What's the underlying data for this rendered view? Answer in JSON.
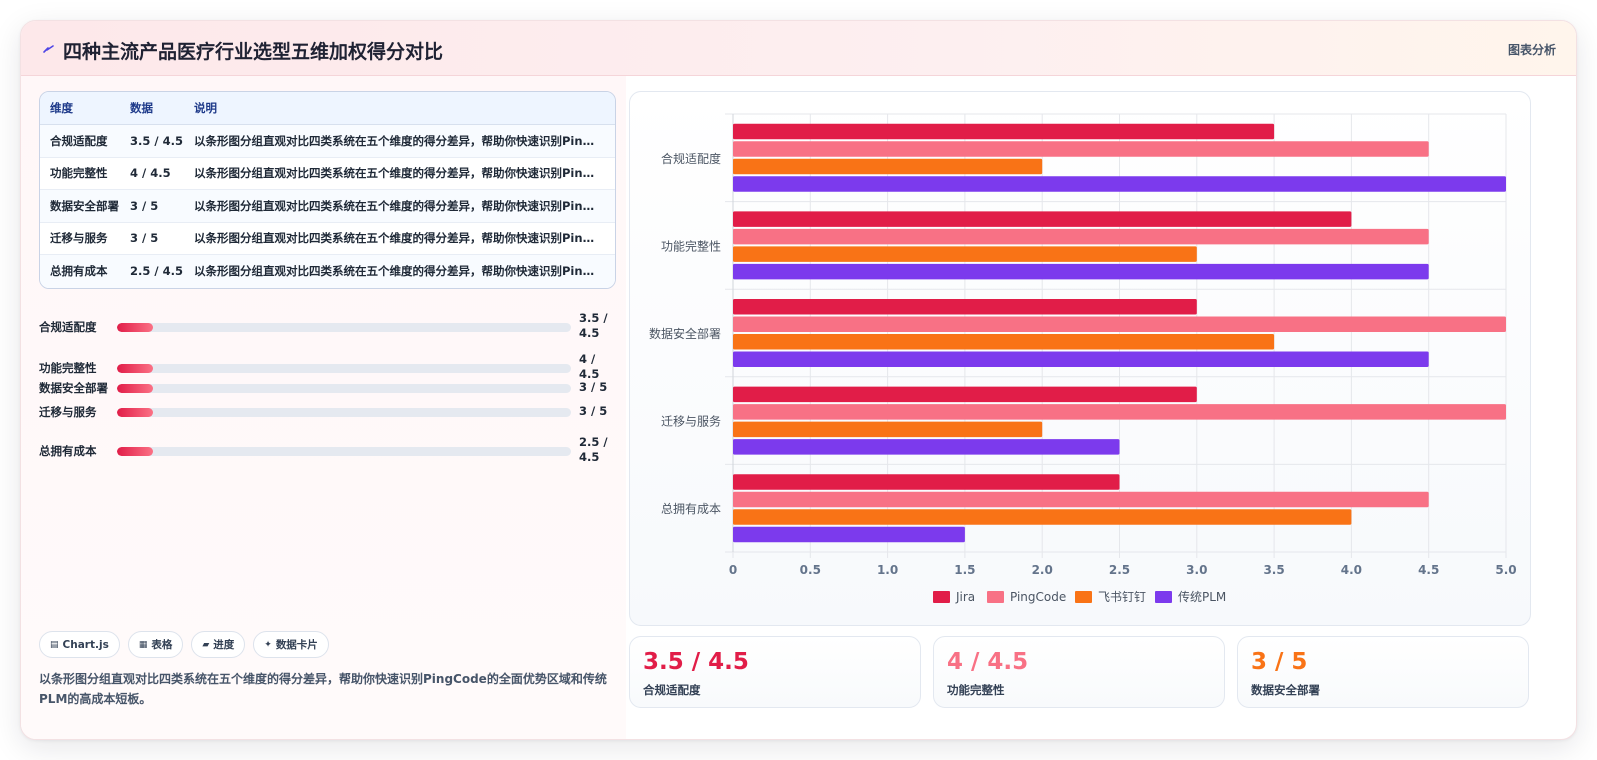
{
  "header": {
    "title": "四种主流产品医疗行业选型五维加权得分对比",
    "tag": "图表分析"
  },
  "table": {
    "headers": [
      "维度",
      "数据",
      "说明"
    ],
    "rows": [
      {
        "dim": "合规适配度",
        "data": "3.5 / 4.5",
        "note": "以条形图分组直观对比四类系统在五个维度的得分差异，帮助你快速识别PingCode的全面优势区域和传统PLM的高成本短板。"
      },
      {
        "dim": "功能完整性",
        "data": "4 / 4.5",
        "note": "以条形图分组直观对比四类系统在五个维度的得分差异，帮助你快速识别PingCode的全面优势区域和传统PLM的高成本短板。"
      },
      {
        "dim": "数据安全部署",
        "data": "3 / 5",
        "note": "以条形图分组直观对比四类系统在五个维度的得分差异，帮助你快速识别PingCode的全面优势区域和传统PLM的高成本短板。"
      },
      {
        "dim": "迁移与服务",
        "data": "3 / 5",
        "note": "以条形图分组直观对比四类系统在五个维度的得分差异，帮助你快速识别PingCode的全面优势区域和传统PLM的高成本短板。"
      },
      {
        "dim": "总拥有成本",
        "data": "2.5 / 4.5",
        "note": "以条形图分组直观对比四类系统在五个维度的得分差异，帮助你快速识别PingCode的全面优势区域和传统PLM的高成本短板。"
      }
    ]
  },
  "progress": [
    {
      "label": "合规适配度",
      "value": "3.5 / 4.5",
      "fraction": 0.08
    },
    {
      "label": "功能完整性",
      "value": "4 / 4.5",
      "fraction": 0.08
    },
    {
      "label": "数据安全部署",
      "value": "3 / 5",
      "fraction": 0.08
    },
    {
      "label": "迁移与服务",
      "value": "3 / 5",
      "fraction": 0.08
    },
    {
      "label": "总拥有成本",
      "value": "2.5 / 4.5",
      "fraction": 0.08
    }
  ],
  "chips": [
    {
      "icon": "▤",
      "label": "Chart.js"
    },
    {
      "icon": "▦",
      "label": "表格"
    },
    {
      "icon": "▰",
      "label": "进度"
    },
    {
      "icon": "✦",
      "label": "数据卡片"
    }
  ],
  "description": "以条形图分组直观对比四类系统在五个维度的得分差异，帮助你快速识别PingCode的全面优势区域和传统PLM的高成本短板。",
  "stats": [
    {
      "value": "3.5 / 4.5",
      "label": "合规适配度",
      "color": "#e11d48"
    },
    {
      "value": "4 / 4.5",
      "label": "功能完整性",
      "color": "#f87185"
    },
    {
      "value": "3 / 5",
      "label": "数据安全部署",
      "color": "#f97316"
    }
  ],
  "chart_data": {
    "type": "bar",
    "orientation": "horizontal",
    "categories": [
      "合规适配度",
      "功能完整性",
      "数据安全部署",
      "迁移与服务",
      "总拥有成本"
    ],
    "series": [
      {
        "name": "Jira",
        "color": "#e11d48",
        "values": [
          3.5,
          4,
          3,
          3,
          2.5
        ]
      },
      {
        "name": "PingCode",
        "color": "#f87185",
        "values": [
          4.5,
          4.5,
          5,
          5,
          4.5
        ]
      },
      {
        "name": "飞书钉钉",
        "color": "#f97316",
        "values": [
          2,
          3,
          3.5,
          2,
          4
        ]
      },
      {
        "name": "传统PLM",
        "color": "#7c3aed",
        "values": [
          5,
          4.5,
          4.5,
          2.5,
          1.5
        ]
      }
    ],
    "xlim": [
      0,
      5
    ],
    "xticks": [
      "0",
      "0.5",
      "1.0",
      "1.5",
      "2.0",
      "2.5",
      "3.0",
      "3.5",
      "4.0",
      "4.5",
      "5.0"
    ],
    "grid": true,
    "legend": "bottom"
  }
}
